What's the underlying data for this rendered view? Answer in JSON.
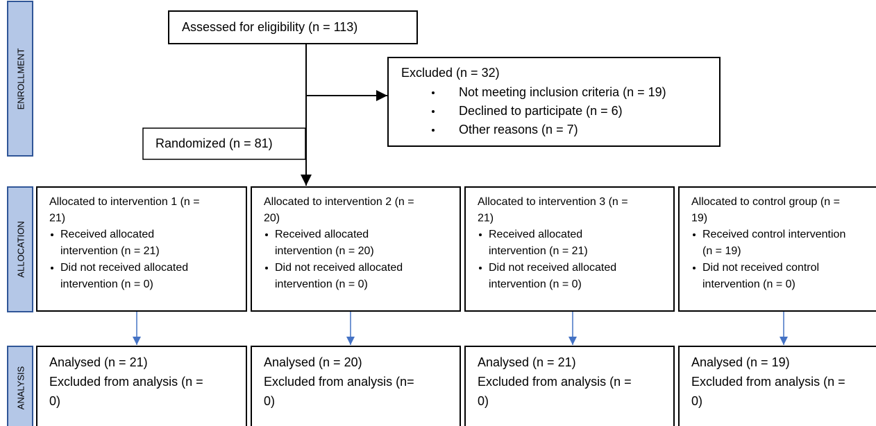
{
  "side_labels": [
    "ENROLLMENT",
    "ALLOCATION",
    "ANALYSIS"
  ],
  "assessed": "Assessed for eligibility (n = 113)",
  "excluded": {
    "title": "Excluded (n = 32)",
    "items": [
      "Not meeting inclusion criteria (n = 19)",
      "Declined to participate (n = 6)",
      "Other reasons (n = 7)"
    ]
  },
  "randomized": "Randomized (n = 81)",
  "allocation": [
    {
      "heading": [
        "Allocated to intervention 1 (n =",
        "21)"
      ],
      "bullets": [
        [
          "Received allocated",
          "intervention (n = 21)"
        ],
        [
          "Did not received allocated",
          "intervention (n = 0)"
        ]
      ]
    },
    {
      "heading": [
        "Allocated to intervention 2 (n =",
        "20)"
      ],
      "bullets": [
        [
          "Received allocated",
          "intervention (n = 20)"
        ],
        [
          "Did not received allocated",
          "intervention (n = 0)"
        ]
      ]
    },
    {
      "heading": [
        "Allocated to intervention 3 (n =",
        "21)"
      ],
      "bullets": [
        [
          "Received allocated",
          "intervention (n = 21)"
        ],
        [
          "Did not received allocated",
          "intervention (n = 0)"
        ]
      ]
    },
    {
      "heading": [
        "Allocated to control group (n =",
        "19)"
      ],
      "bullets": [
        [
          "Received control intervention",
          "(n = 19)"
        ],
        [
          "Did not received control",
          "intervention (n = 0)"
        ]
      ]
    }
  ],
  "analysis": [
    {
      "lines": [
        "Analysed (n = 21)",
        "Excluded from analysis (n =",
        "0)"
      ]
    },
    {
      "lines": [
        "Analysed (n = 20)",
        "Excluded from analysis (n=",
        "0)"
      ]
    },
    {
      "lines": [
        "Analysed (n = 21)",
        "Excluded from analysis (n =",
        "0)"
      ]
    },
    {
      "lines": [
        "Analysed (n = 19)",
        "Excluded from analysis (n =",
        "0)"
      ]
    }
  ]
}
